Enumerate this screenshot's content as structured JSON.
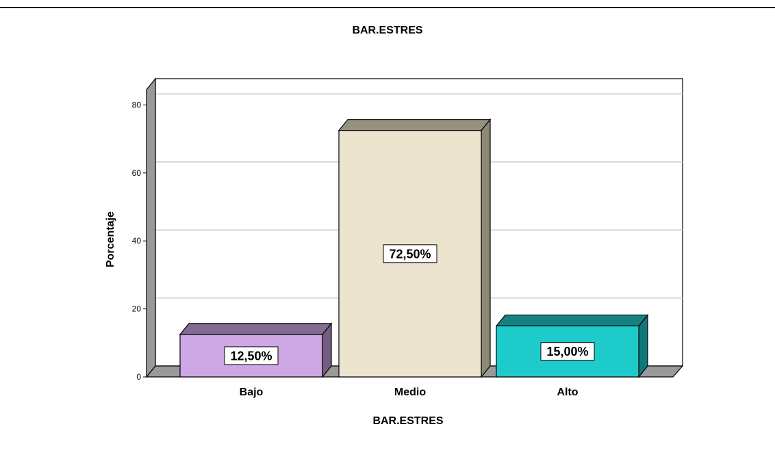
{
  "chart_data": {
    "type": "bar",
    "title": "BAR.ESTRES",
    "xlabel": "BAR.ESTRES",
    "ylabel": "Porcentaje",
    "categories": [
      "Bajo",
      "Medio",
      "Alto"
    ],
    "values": [
      12.5,
      72.5,
      15.0
    ],
    "data_labels": [
      "12,50%",
      "72,50%",
      "15,00%"
    ],
    "ylim": [
      0,
      85
    ],
    "yticks": [
      0,
      20,
      40,
      60,
      80
    ],
    "grid": true,
    "legend": "none",
    "style": "3d",
    "colors": {
      "Bajo": {
        "front": "#cda8e4",
        "top": "#826c91",
        "side": "#725e80"
      },
      "Medio": {
        "front": "#ede4d0",
        "top": "#96917f",
        "side": "#8d8877"
      },
      "Alto": {
        "front": "#1ecbcb",
        "top": "#158282",
        "side": "#107878"
      }
    }
  }
}
